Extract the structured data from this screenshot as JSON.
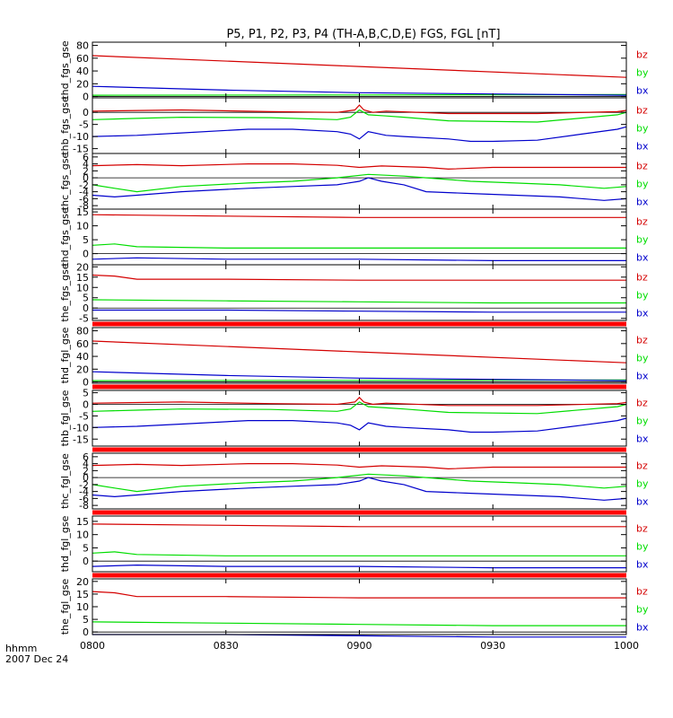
{
  "title": "P5, P1, P2, P3, P4 (TH-A,B,C,D,E) FGS, FGL [nT]",
  "x_axis": {
    "ticks": [
      "0800",
      "0830",
      "0900",
      "0930",
      "1000"
    ],
    "tick_minutes": [
      0,
      30,
      60,
      90,
      120
    ],
    "range_minutes": [
      0,
      120
    ],
    "label_line1": "hhmm",
    "label_line2": "2007 Dec 24"
  },
  "colors": {
    "bz": "#d40000",
    "by": "#00dd00",
    "bx": "#0000cc",
    "gap": "#ff0000",
    "axis": "#000000"
  },
  "chart_data": [
    {
      "type": "line",
      "ylabel": "thd_fgs_gse",
      "ylim": [
        -2,
        85
      ],
      "yticks": [
        0,
        20,
        40,
        60,
        80
      ],
      "gap_after": false,
      "series": [
        {
          "name": "bz",
          "color": "#d40000",
          "x": [
            0,
            60,
            120
          ],
          "y": [
            64,
            47,
            30
          ]
        },
        {
          "name": "by",
          "color": "#00dd00",
          "x": [
            0,
            60,
            120
          ],
          "y": [
            2,
            2.5,
            3
          ]
        },
        {
          "name": "bx",
          "color": "#0000cc",
          "x": [
            0,
            30,
            60,
            90,
            120
          ],
          "y": [
            16,
            10,
            6,
            4,
            2
          ]
        }
      ]
    },
    {
      "type": "line",
      "ylabel": "thb_fgs_gse",
      "ylim": [
        -17,
        6
      ],
      "yticks": [
        -15,
        -10,
        -5,
        0
      ],
      "gap_after": false,
      "series": [
        {
          "name": "bz",
          "color": "#d40000",
          "x": [
            0,
            20,
            40,
            55,
            59,
            60,
            61,
            63,
            66,
            80,
            100,
            118,
            120
          ],
          "y": [
            0.5,
            1,
            0.3,
            0,
            1,
            3,
            1,
            0,
            0.5,
            -0.5,
            -0.5,
            0.3,
            0.8
          ]
        },
        {
          "name": "by",
          "color": "#00dd00",
          "x": [
            0,
            10,
            20,
            40,
            55,
            58,
            60,
            62,
            66,
            70,
            80,
            100,
            118,
            120
          ],
          "y": [
            -3,
            -2.5,
            -2,
            -2.2,
            -3,
            -2,
            1,
            -1,
            -1.5,
            -2,
            -3.5,
            -4,
            -1,
            0
          ]
        },
        {
          "name": "bx",
          "color": "#0000cc",
          "x": [
            0,
            10,
            20,
            35,
            45,
            55,
            58,
            60,
            62,
            66,
            70,
            80,
            85,
            90,
            100,
            110,
            118,
            120
          ],
          "y": [
            -10,
            -9.5,
            -8.5,
            -7,
            -7,
            -8,
            -9,
            -11,
            -8,
            -9.5,
            -10,
            -11,
            -12,
            -12,
            -11.5,
            -9,
            -7,
            -6
          ]
        }
      ]
    },
    {
      "type": "line",
      "ylabel": "thc_fgs_gse",
      "ylim": [
        -9,
        7
      ],
      "yticks": [
        -8,
        -6,
        -4,
        -2,
        0,
        2,
        4,
        6
      ],
      "gap_after": false,
      "series": [
        {
          "name": "bz",
          "color": "#d40000",
          "x": [
            0,
            10,
            20,
            35,
            45,
            55,
            60,
            65,
            75,
            80,
            90,
            100,
            120
          ],
          "y": [
            3.5,
            3.8,
            3.5,
            4,
            4,
            3.6,
            3,
            3.4,
            3,
            2.5,
            3,
            3,
            3
          ]
        },
        {
          "name": "by",
          "color": "#00dd00",
          "x": [
            0,
            5,
            10,
            20,
            35,
            45,
            55,
            62,
            70,
            75,
            85,
            95,
            105,
            115,
            120
          ],
          "y": [
            -2,
            -3,
            -4,
            -2.5,
            -1.5,
            -1,
            0,
            1,
            0.5,
            0,
            -1,
            -1.5,
            -2,
            -3,
            -2.5
          ]
        },
        {
          "name": "bx",
          "color": "#0000cc",
          "x": [
            0,
            5,
            10,
            20,
            35,
            45,
            55,
            60,
            62,
            65,
            70,
            75,
            85,
            95,
            105,
            115,
            120
          ],
          "y": [
            -5,
            -5.5,
            -5,
            -4,
            -3,
            -2.5,
            -2,
            -1,
            0,
            -1,
            -2,
            -4,
            -4.5,
            -5,
            -5.5,
            -6.5,
            -6
          ]
        }
      ]
    },
    {
      "type": "line",
      "ylabel": "thd_fgs_gse",
      "ylim": [
        -4,
        16
      ],
      "yticks": [
        -5,
        0,
        5,
        10,
        15
      ],
      "gap_after": false,
      "series": [
        {
          "name": "bz",
          "color": "#d40000",
          "x": [
            0,
            30,
            60,
            90,
            120
          ],
          "y": [
            14,
            13.5,
            13,
            13,
            13
          ]
        },
        {
          "name": "by",
          "color": "#00dd00",
          "x": [
            0,
            5,
            10,
            30,
            60,
            90,
            120
          ],
          "y": [
            3,
            3.5,
            2.5,
            2,
            2,
            2,
            2
          ]
        },
        {
          "name": "bx",
          "color": "#0000cc",
          "x": [
            0,
            10,
            30,
            60,
            90,
            120
          ],
          "y": [
            -2,
            -1.5,
            -2,
            -2,
            -2.5,
            -2.5
          ]
        }
      ]
    },
    {
      "type": "line",
      "ylabel": "the_fgs_gse",
      "ylim": [
        -6,
        21
      ],
      "yticks": [
        -5,
        0,
        5,
        10,
        15,
        20
      ],
      "gap_after": true,
      "series": [
        {
          "name": "bz",
          "color": "#d40000",
          "x": [
            0,
            5,
            10,
            15,
            30,
            60,
            90,
            120
          ],
          "y": [
            16,
            15.5,
            14,
            14,
            14,
            13.5,
            13.5,
            13.5
          ]
        },
        {
          "name": "by",
          "color": "#00dd00",
          "x": [
            0,
            30,
            60,
            90,
            120
          ],
          "y": [
            4,
            3.5,
            3,
            2.5,
            2.5
          ]
        },
        {
          "name": "bx",
          "color": "#0000cc",
          "x": [
            0,
            30,
            60,
            90,
            120
          ],
          "y": [
            -1,
            -1,
            -1.5,
            -2,
            -2
          ]
        }
      ]
    },
    {
      "type": "line",
      "ylabel": "thd_fgl_gse",
      "ylim": [
        -2,
        85
      ],
      "yticks": [
        0,
        20,
        40,
        60,
        80
      ],
      "gap_after": true,
      "series": [
        {
          "name": "bz",
          "color": "#d40000",
          "x": [
            0,
            60,
            120
          ],
          "y": [
            64,
            47,
            30
          ]
        },
        {
          "name": "by",
          "color": "#00dd00",
          "x": [
            0,
            60,
            120
          ],
          "y": [
            2,
            2.5,
            3
          ]
        },
        {
          "name": "bx",
          "color": "#0000cc",
          "x": [
            0,
            30,
            60,
            90,
            120
          ],
          "y": [
            16,
            10,
            6,
            4,
            2
          ]
        }
      ]
    },
    {
      "type": "line",
      "ylabel": "thb_fgl_gse",
      "ylim": [
        -18,
        6
      ],
      "yticks": [
        -15,
        -10,
        -5,
        0,
        5
      ],
      "gap_after": true,
      "series": [
        {
          "name": "bz",
          "color": "#d40000",
          "x": [
            0,
            20,
            40,
            55,
            59,
            60,
            61,
            63,
            66,
            80,
            100,
            118,
            120
          ],
          "y": [
            0.5,
            1,
            0.3,
            0,
            1,
            3,
            1,
            0,
            0.5,
            -0.5,
            -0.5,
            0.3,
            0.8
          ]
        },
        {
          "name": "by",
          "color": "#00dd00",
          "x": [
            0,
            10,
            20,
            40,
            55,
            58,
            60,
            62,
            66,
            70,
            80,
            100,
            118,
            120
          ],
          "y": [
            -3,
            -2.5,
            -2,
            -2.2,
            -3,
            -2,
            1,
            -1,
            -1.5,
            -2,
            -3.5,
            -4,
            -1,
            0
          ]
        },
        {
          "name": "bx",
          "color": "#0000cc",
          "x": [
            0,
            10,
            20,
            35,
            45,
            55,
            58,
            60,
            62,
            66,
            70,
            80,
            85,
            90,
            100,
            110,
            118,
            120
          ],
          "y": [
            -10,
            -9.5,
            -8.5,
            -7,
            -7,
            -8,
            -9,
            -11,
            -8,
            -9.5,
            -10,
            -11,
            -12,
            -12,
            -11.5,
            -9,
            -7,
            -6
          ]
        }
      ]
    },
    {
      "type": "line",
      "ylabel": "thc_fgl_gse",
      "ylim": [
        -9,
        7
      ],
      "yticks": [
        -8,
        -6,
        -4,
        -2,
        0,
        2,
        4,
        6
      ],
      "gap_after": true,
      "series": [
        {
          "name": "bz",
          "color": "#d40000",
          "x": [
            0,
            10,
            20,
            35,
            45,
            55,
            60,
            65,
            75,
            80,
            90,
            100,
            120
          ],
          "y": [
            3.5,
            3.8,
            3.5,
            4,
            4,
            3.6,
            3,
            3.4,
            3,
            2.5,
            3,
            3,
            3
          ]
        },
        {
          "name": "by",
          "color": "#00dd00",
          "x": [
            0,
            5,
            10,
            20,
            35,
            45,
            55,
            62,
            70,
            75,
            85,
            95,
            105,
            115,
            120
          ],
          "y": [
            -2,
            -3,
            -4,
            -2.5,
            -1.5,
            -1,
            0,
            1,
            0.5,
            0,
            -1,
            -1.5,
            -2,
            -3,
            -2.5
          ]
        },
        {
          "name": "bx",
          "color": "#0000cc",
          "x": [
            0,
            5,
            10,
            20,
            35,
            45,
            55,
            60,
            62,
            65,
            70,
            75,
            85,
            95,
            105,
            115,
            120
          ],
          "y": [
            -5,
            -5.5,
            -5,
            -4,
            -3,
            -2.5,
            -2,
            -1,
            0,
            -1,
            -2,
            -4,
            -4.5,
            -5,
            -5.5,
            -6.5,
            -6
          ]
        }
      ]
    },
    {
      "type": "line",
      "ylabel": "thd_fgl_gse",
      "ylim": [
        -4,
        17
      ],
      "yticks": [
        -5,
        0,
        5,
        10,
        15
      ],
      "gap_after": true,
      "series": [
        {
          "name": "bz",
          "color": "#d40000",
          "x": [
            0,
            30,
            60,
            90,
            120
          ],
          "y": [
            14,
            13.5,
            13,
            13,
            13
          ]
        },
        {
          "name": "by",
          "color": "#00dd00",
          "x": [
            0,
            5,
            10,
            30,
            60,
            90,
            120
          ],
          "y": [
            3,
            3.5,
            2.5,
            2,
            2,
            2,
            2
          ]
        },
        {
          "name": "bx",
          "color": "#0000cc",
          "x": [
            0,
            10,
            30,
            60,
            90,
            120
          ],
          "y": [
            -2,
            -1.5,
            -2,
            -2,
            -2.5,
            -2.5
          ]
        }
      ]
    },
    {
      "type": "line",
      "ylabel": "the_fgl_gse",
      "ylim": [
        -1,
        21
      ],
      "yticks": [
        0,
        5,
        10,
        15,
        20
      ],
      "gap_after": false,
      "series": [
        {
          "name": "bz",
          "color": "#d40000",
          "x": [
            0,
            5,
            10,
            15,
            30,
            60,
            90,
            120
          ],
          "y": [
            16,
            15.5,
            14,
            14,
            14,
            13.5,
            13.5,
            13.5
          ]
        },
        {
          "name": "by",
          "color": "#00dd00",
          "x": [
            0,
            30,
            60,
            90,
            120
          ],
          "y": [
            4,
            3.5,
            3,
            2.5,
            2.5
          ]
        },
        {
          "name": "bx",
          "color": "#0000cc",
          "x": [
            0,
            30,
            60,
            90,
            120
          ],
          "y": [
            -1,
            -1,
            -1.5,
            -2,
            -2
          ]
        }
      ]
    }
  ]
}
